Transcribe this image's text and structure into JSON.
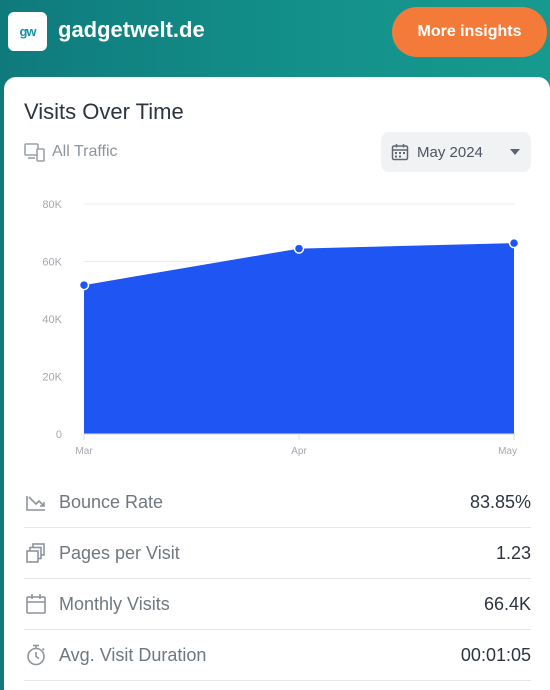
{
  "header": {
    "logo_text": "gw",
    "site_name": "gadgetwelt.de",
    "cta_label": "More insights"
  },
  "card": {
    "title": "Visits Over Time",
    "traffic_filter": "All Traffic",
    "date_selected": "May 2024"
  },
  "chart_data": {
    "type": "area",
    "categories": [
      "Mar",
      "Apr",
      "May"
    ],
    "values": [
      51800,
      64500,
      66400
    ],
    "y_ticks": [
      "0",
      "20K",
      "40K",
      "60K",
      "80K"
    ],
    "ylim": [
      0,
      80000
    ],
    "grid": true,
    "color": "#1f55f2"
  },
  "metrics": [
    {
      "label": "Bounce Rate",
      "value": "83.85%",
      "icon": "trend-icon"
    },
    {
      "label": "Pages per Visit",
      "value": "1.23",
      "icon": "pages-icon"
    },
    {
      "label": "Monthly Visits",
      "value": "66.4K",
      "icon": "calendar-icon"
    },
    {
      "label": "Avg. Visit Duration",
      "value": "00:01:05",
      "icon": "stopwatch-icon"
    }
  ],
  "colors": {
    "accent": "#f47a3a",
    "header": "#13908a",
    "series": "#1f55f2"
  }
}
